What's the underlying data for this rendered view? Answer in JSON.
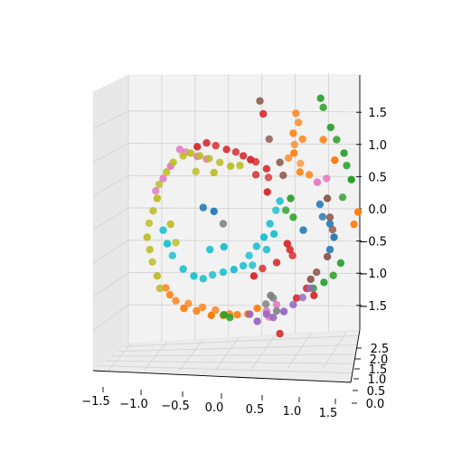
{
  "chart_data": {
    "type": "scatter3d",
    "title": "",
    "xlabel": "",
    "ylabel": "",
    "zlabel": "",
    "grid": true,
    "legend": "none",
    "xlim": [
      -1.5,
      1.9
    ],
    "ylim": [
      0.0,
      2.8
    ],
    "zlim": [
      -1.9,
      1.9
    ],
    "x_ticks": [
      "−1.5",
      "−1.0",
      "−0.5",
      "0.0",
      "0.5",
      "1.0",
      "1.5"
    ],
    "x_tick_values": [
      -1.5,
      -1.0,
      -0.5,
      0.0,
      0.5,
      1.0,
      1.5
    ],
    "y_ticks": [
      "0.0",
      "0.5",
      "1.0",
      "1.5",
      "2.0",
      "2.5"
    ],
    "y_tick_values": [
      0.0,
      0.5,
      1.0,
      1.5,
      2.0,
      2.5
    ],
    "z_ticks": [
      "−1.5",
      "−1.0",
      "−0.5",
      "0.0",
      "0.5",
      "1.0",
      "1.5"
    ],
    "z_tick_values": [
      -1.5,
      -1.0,
      -0.5,
      0.0,
      0.5,
      1.0,
      1.5
    ],
    "series": [
      {
        "color": "#ff7f0e",
        "points": [
          [
            1.0,
            1.3,
            1.5
          ],
          [
            1.05,
            1.4,
            1.35
          ],
          [
            0.95,
            1.2,
            1.2
          ],
          [
            1.1,
            1.3,
            1.1
          ],
          [
            1.0,
            1.5,
            1.0
          ],
          [
            0.9,
            1.4,
            0.8
          ],
          [
            1.05,
            1.2,
            0.6
          ],
          [
            1.2,
            1.3,
            0.55
          ],
          [
            1.1,
            1.6,
            0.7
          ],
          [
            0.95,
            1.1,
            0.9
          ],
          [
            -0.9,
            1.2,
            -1.3
          ],
          [
            -0.8,
            1.3,
            -1.4
          ],
          [
            -0.7,
            1.1,
            -1.5
          ],
          [
            -0.5,
            1.2,
            -1.55
          ],
          [
            -0.3,
            1.0,
            -1.6
          ],
          [
            -0.1,
            1.2,
            -1.62
          ],
          [
            0.1,
            1.1,
            -1.6
          ],
          [
            0.25,
            1.0,
            -1.58
          ],
          [
            -0.6,
            1.4,
            -1.45
          ],
          [
            -0.4,
            1.3,
            -1.5
          ],
          [
            -0.2,
            1.35,
            -1.55
          ],
          [
            0.0,
            1.25,
            -1.6
          ],
          [
            1.9,
            1.0,
            0.0
          ],
          [
            1.85,
            1.1,
            -0.2
          ],
          [
            1.55,
            1.0,
            0.8
          ],
          [
            1.4,
            1.2,
            1.1
          ],
          [
            -0.95,
            1.3,
            -1.2
          ],
          [
            0.4,
            1.1,
            -1.5
          ]
        ]
      },
      {
        "color": "#2ca02c",
        "points": [
          [
            1.35,
            1.1,
            1.75
          ],
          [
            1.4,
            1.2,
            1.6
          ],
          [
            1.5,
            1.1,
            1.3
          ],
          [
            1.6,
            1.2,
            1.1
          ],
          [
            1.7,
            1.1,
            0.9
          ],
          [
            1.75,
            1.2,
            0.7
          ],
          [
            1.8,
            1.0,
            0.5
          ],
          [
            1.7,
            1.3,
            0.2
          ],
          [
            1.65,
            1.1,
            -0.8
          ],
          [
            1.55,
            1.2,
            -1.0
          ],
          [
            1.4,
            1.1,
            -1.1
          ],
          [
            1.25,
            1.2,
            -1.2
          ],
          [
            0.9,
            1.1,
            0.2
          ],
          [
            0.85,
            1.3,
            0.0
          ],
          [
            0.95,
            1.2,
            -0.1
          ],
          [
            -0.1,
            1.1,
            -1.6
          ],
          [
            0.0,
            1.2,
            -1.65
          ]
        ]
      },
      {
        "color": "#d62728",
        "points": [
          [
            -0.35,
            1.2,
            1.05
          ],
          [
            -0.2,
            1.3,
            1.0
          ],
          [
            -0.05,
            1.2,
            0.95
          ],
          [
            0.1,
            1.3,
            0.9
          ],
          [
            0.2,
            1.2,
            0.85
          ],
          [
            0.3,
            1.1,
            0.8
          ],
          [
            0.4,
            1.3,
            0.75
          ],
          [
            0.55,
            1.2,
            0.65
          ],
          [
            0.6,
            1.4,
            0.5
          ],
          [
            0.55,
            1.1,
            0.3
          ],
          [
            0.5,
            1.2,
            1.5
          ],
          [
            0.4,
            1.3,
            0.55
          ],
          [
            0.9,
            1.2,
            -0.6
          ],
          [
            0.95,
            1.3,
            -0.7
          ],
          [
            0.85,
            1.1,
            -0.5
          ],
          [
            0.7,
            1.2,
            -0.8
          ],
          [
            0.5,
            1.3,
            -0.9
          ],
          [
            0.35,
            1.1,
            -1.0
          ],
          [
            1.15,
            1.2,
            -1.2
          ],
          [
            1.25,
            1.1,
            -1.3
          ],
          [
            1.0,
            1.2,
            -1.35
          ],
          [
            -0.5,
            1.1,
            1.0
          ],
          [
            0.75,
            1.2,
            -1.9
          ]
        ]
      },
      {
        "color": "#e377c2",
        "points": [
          [
            -0.75,
            1.2,
            0.95
          ],
          [
            -0.65,
            1.3,
            0.9
          ],
          [
            -0.9,
            1.1,
            0.7
          ],
          [
            -1.0,
            1.2,
            0.5
          ],
          [
            -1.1,
            1.3,
            0.3
          ],
          [
            -0.5,
            1.1,
            0.85
          ],
          [
            -0.35,
            1.2,
            0.8
          ],
          [
            1.45,
            1.2,
            0.5
          ],
          [
            1.3,
            1.1,
            0.45
          ],
          [
            0.55,
            1.2,
            -1.55
          ],
          [
            0.6,
            1.3,
            -1.65
          ],
          [
            0.7,
            1.2,
            -1.45
          ]
        ]
      },
      {
        "color": "#bcbd22",
        "points": [
          [
            -0.95,
            1.2,
            0.6
          ],
          [
            -1.05,
            1.3,
            0.4
          ],
          [
            -1.1,
            1.1,
            0.2
          ],
          [
            -1.15,
            1.2,
            0.0
          ],
          [
            -1.2,
            1.3,
            -0.2
          ],
          [
            -1.25,
            1.1,
            -0.4
          ],
          [
            -1.2,
            1.2,
            -0.6
          ],
          [
            -1.15,
            1.3,
            -0.8
          ],
          [
            -1.1,
            1.1,
            -1.0
          ],
          [
            -1.05,
            1.2,
            -1.2
          ],
          [
            -0.9,
            1.1,
            -0.2
          ],
          [
            -0.8,
            1.3,
            -0.5
          ],
          [
            -0.7,
            1.2,
            0.85
          ],
          [
            -0.6,
            1.1,
            0.9
          ],
          [
            -0.45,
            1.2,
            0.85
          ],
          [
            -0.3,
            1.3,
            0.8
          ],
          [
            -0.15,
            1.2,
            0.75
          ],
          [
            0.0,
            1.1,
            0.7
          ],
          [
            0.15,
            1.2,
            0.7
          ],
          [
            -0.85,
            1.2,
            0.75
          ],
          [
            -0.5,
            1.3,
            0.6
          ],
          [
            -0.25,
            1.1,
            0.6
          ]
        ]
      },
      {
        "color": "#17becf",
        "points": [
          [
            -1.0,
            1.2,
            -0.3
          ],
          [
            -0.95,
            1.1,
            -0.5
          ],
          [
            -0.85,
            1.3,
            -0.7
          ],
          [
            -0.7,
            1.2,
            -0.9
          ],
          [
            -0.55,
            1.1,
            -1.0
          ],
          [
            -0.4,
            1.2,
            -1.05
          ],
          [
            -0.25,
            1.3,
            -1.0
          ],
          [
            -0.1,
            1.2,
            -0.95
          ],
          [
            0.05,
            1.1,
            -0.9
          ],
          [
            0.2,
            1.2,
            -0.85
          ],
          [
            0.3,
            1.3,
            -0.7
          ],
          [
            0.4,
            1.2,
            -0.55
          ],
          [
            0.5,
            1.1,
            -0.4
          ],
          [
            0.6,
            1.2,
            -0.2
          ],
          [
            0.7,
            1.3,
            0.0
          ],
          [
            0.75,
            1.2,
            0.15
          ],
          [
            0.65,
            1.1,
            -0.35
          ],
          [
            0.55,
            1.2,
            -0.6
          ],
          [
            0.35,
            1.3,
            -0.85
          ],
          [
            -0.3,
            1.2,
            -0.6
          ],
          [
            -0.1,
            1.1,
            -0.55
          ]
        ]
      },
      {
        "color": "#1f77b4",
        "points": [
          [
            -0.4,
            1.2,
            0.05
          ],
          [
            -0.25,
            1.1,
            0.0
          ],
          [
            1.35,
            1.2,
            0.1
          ],
          [
            1.4,
            1.3,
            -0.1
          ],
          [
            1.5,
            1.2,
            -0.2
          ],
          [
            1.55,
            1.1,
            -0.4
          ],
          [
            1.5,
            1.2,
            -0.6
          ],
          [
            1.1,
            1.2,
            -0.3
          ]
        ]
      },
      {
        "color": "#8c564b",
        "points": [
          [
            0.45,
            1.2,
            1.7
          ],
          [
            0.6,
            1.3,
            1.1
          ],
          [
            0.75,
            1.2,
            0.75
          ],
          [
            1.45,
            1.1,
            0.2
          ],
          [
            1.5,
            1.2,
            -0.1
          ],
          [
            1.55,
            1.3,
            -0.3
          ],
          [
            1.45,
            1.1,
            -0.7
          ],
          [
            1.3,
            1.2,
            -0.95
          ],
          [
            1.2,
            1.1,
            -1.05
          ],
          [
            0.8,
            1.2,
            0.55
          ]
        ]
      },
      {
        "color": "#9467bd",
        "points": [
          [
            0.65,
            1.2,
            -1.65
          ],
          [
            0.8,
            1.1,
            -1.55
          ],
          [
            0.95,
            1.2,
            -1.45
          ],
          [
            1.1,
            1.3,
            -1.35
          ],
          [
            1.2,
            1.2,
            -1.2
          ],
          [
            0.4,
            1.1,
            -1.7
          ],
          [
            0.55,
            1.2,
            -1.6
          ],
          [
            0.3,
            1.2,
            -1.6
          ]
        ]
      },
      {
        "color": "#7f7f7f",
        "points": [
          [
            -0.1,
            1.2,
            -0.2
          ],
          [
            0.6,
            1.1,
            -1.3
          ],
          [
            0.65,
            1.2,
            -1.35
          ],
          [
            0.55,
            1.3,
            -1.45
          ],
          [
            0.7,
            1.2,
            -1.55
          ]
        ]
      }
    ]
  }
}
